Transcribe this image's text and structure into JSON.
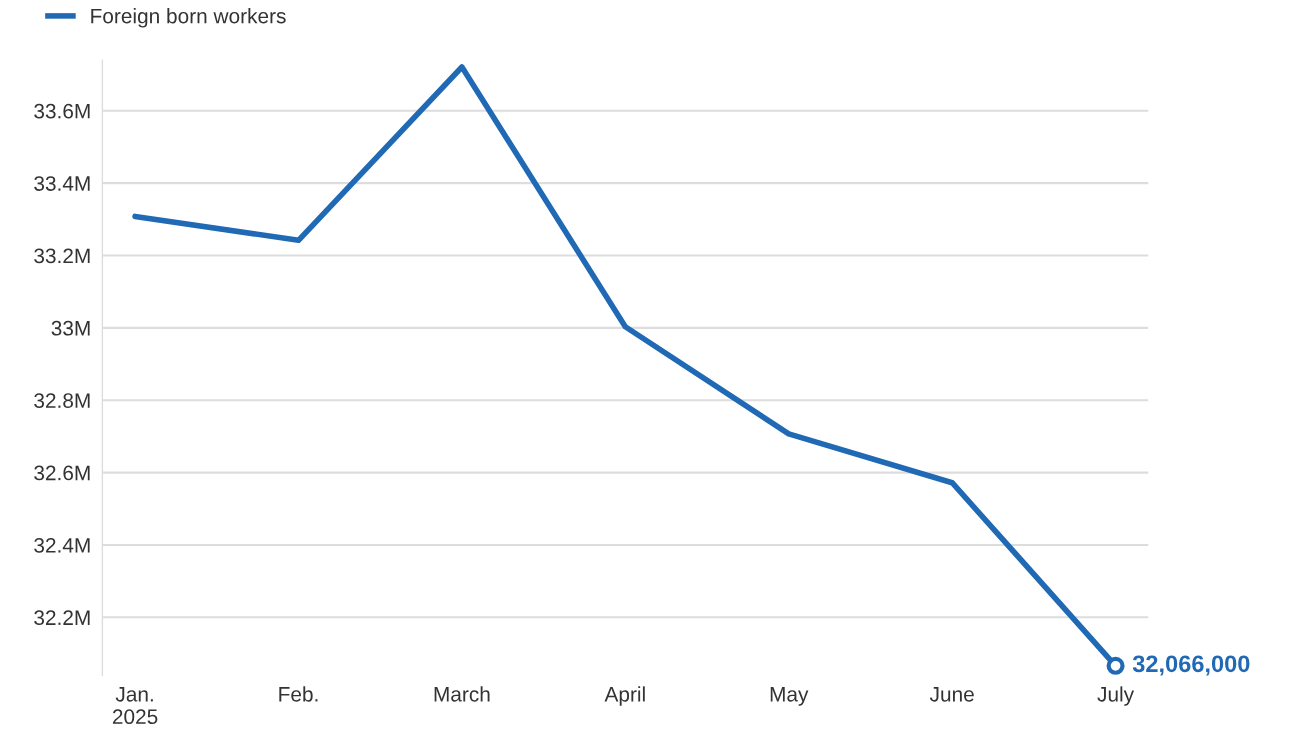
{
  "chart_data": {
    "type": "line",
    "categories": [
      "Jan.\n2025",
      "Feb.",
      "March",
      "April",
      "May",
      "June",
      "July"
    ],
    "series": [
      {
        "name": "Foreign born workers",
        "color": "#1f69b5",
        "values": [
          33.308,
          33.242,
          33.721,
          33.003,
          32.707,
          32.572,
          32.066
        ]
      }
    ],
    "ylim": [
      32.04,
      33.74
    ],
    "yticks": [
      {
        "value": 32.2,
        "label": "32.2M"
      },
      {
        "value": 32.4,
        "label": "32.4M"
      },
      {
        "value": 32.6,
        "label": "32.6M"
      },
      {
        "value": 32.8,
        "label": "32.8M"
      },
      {
        "value": 33.0,
        "label": "33M"
      },
      {
        "value": 33.2,
        "label": "33.2M"
      },
      {
        "value": 33.4,
        "label": "33.4M"
      },
      {
        "value": 33.6,
        "label": "33.6M"
      }
    ],
    "grid": "y",
    "legend": "top left",
    "marker": "none",
    "line_style": "solid",
    "annotations": [
      {
        "text": "32,066,000",
        "x": "July",
        "y": 32.066
      }
    ]
  }
}
